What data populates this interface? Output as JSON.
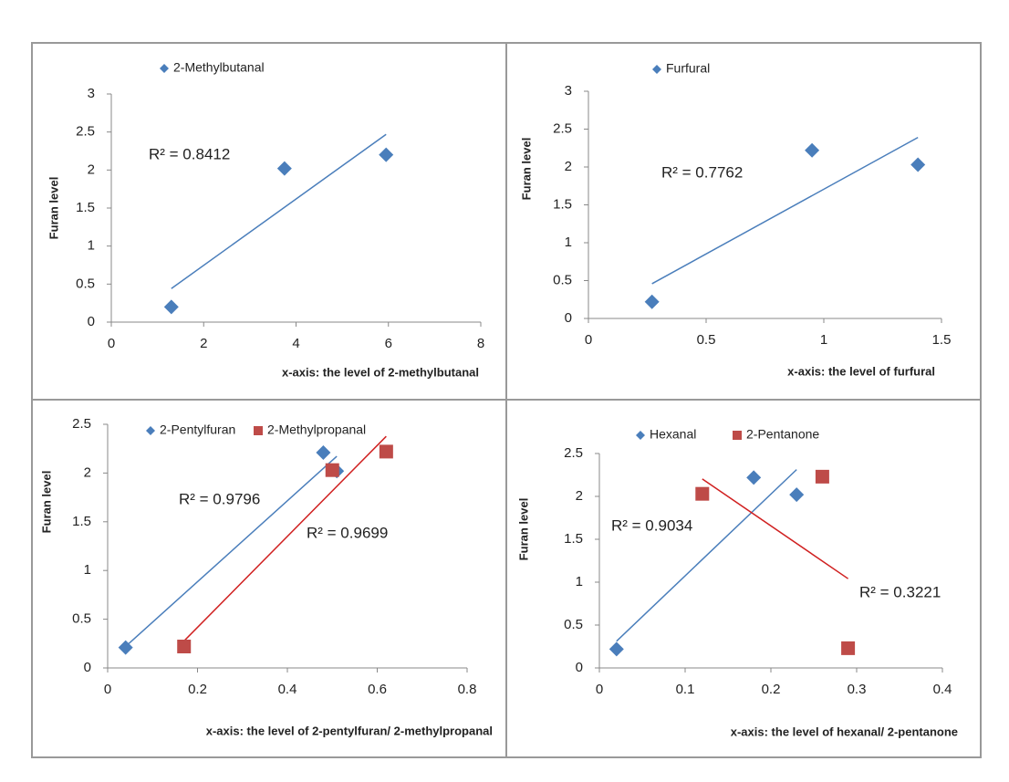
{
  "chart_data": [
    {
      "type": "scatter",
      "xlabel": "x-axis: the level of 2-methylbutanal",
      "ylabel": "Furan level",
      "xlim": [
        0,
        8
      ],
      "xticks": [
        0,
        2,
        4,
        6,
        8
      ],
      "ylim": [
        0,
        3
      ],
      "yticks": [
        0,
        0.5,
        1,
        1.5,
        2,
        2.5,
        3
      ],
      "trendline": true,
      "series": [
        {
          "name": "2-Methylbutanal",
          "color": "#4a7ebb",
          "line_color": "#4a7ebb",
          "marker": "diamond",
          "x": [
            1.3,
            3.75,
            5.95
          ],
          "values": [
            0.2,
            2.02,
            2.2
          ],
          "annotation": "R² = 0.8412"
        }
      ]
    },
    {
      "type": "scatter",
      "xlabel": "x-axis: the level of furfural",
      "ylabel": "Furan level",
      "xlim": [
        0,
        1.5
      ],
      "xticks": [
        0,
        0.5,
        1,
        1.5
      ],
      "ylim": [
        0,
        3
      ],
      "yticks": [
        0,
        0.5,
        1,
        1.5,
        2,
        2.5,
        3
      ],
      "trendline": true,
      "series": [
        {
          "name": "Furfural",
          "color": "#4a7ebb",
          "line_color": "#4a7ebb",
          "marker": "diamond",
          "x": [
            0.27,
            0.95,
            1.4
          ],
          "values": [
            0.22,
            2.22,
            2.03
          ],
          "annotation": "R² = 0.7762"
        }
      ]
    },
    {
      "type": "scatter",
      "xlabel": "x-axis: the level of 2-pentylfuran/ 2-methylpropanal",
      "ylabel": "Furan level",
      "xlim": [
        0,
        0.8
      ],
      "xticks": [
        0,
        0.2,
        0.4,
        0.6,
        0.8
      ],
      "ylim": [
        0,
        2.5
      ],
      "yticks": [
        0,
        0.5,
        1,
        1.5,
        2,
        2.5
      ],
      "trendline": true,
      "series": [
        {
          "name": "2-Pentylfuran",
          "color": "#4a7ebb",
          "line_color": "#4a7ebb",
          "marker": "diamond",
          "x": [
            0.04,
            0.48,
            0.51
          ],
          "values": [
            0.21,
            2.21,
            2.02
          ],
          "annotation": "R² = 0.9796"
        },
        {
          "name": "2-Methylpropanal",
          "color": "#be4b48",
          "line_color": "#d02020",
          "marker": "square",
          "x": [
            0.17,
            0.5,
            0.62
          ],
          "values": [
            0.22,
            2.03,
            2.22
          ],
          "annotation": "R² = 0.9699"
        }
      ]
    },
    {
      "type": "scatter",
      "xlabel": "x-axis: the level of hexanal/ 2-pentanone",
      "ylabel": "Furan level",
      "xlim": [
        0,
        0.4
      ],
      "xticks": [
        0,
        0.1,
        0.2,
        0.3,
        0.4
      ],
      "ylim": [
        0,
        2.5
      ],
      "yticks": [
        0,
        0.5,
        1,
        1.5,
        2,
        2.5
      ],
      "trendline": true,
      "series": [
        {
          "name": "Hexanal",
          "color": "#4a7ebb",
          "line_color": "#4a7ebb",
          "marker": "diamond",
          "x": [
            0.02,
            0.18,
            0.23
          ],
          "values": [
            0.22,
            2.22,
            2.02
          ],
          "annotation": "R² = 0.9034"
        },
        {
          "name": "2-Pentanone",
          "color": "#be4b48",
          "line_color": "#d02020",
          "marker": "square",
          "x": [
            0.12,
            0.26,
            0.29
          ],
          "values": [
            2.03,
            2.23,
            0.23
          ],
          "annotation": "R² = 0.3221"
        }
      ]
    }
  ]
}
